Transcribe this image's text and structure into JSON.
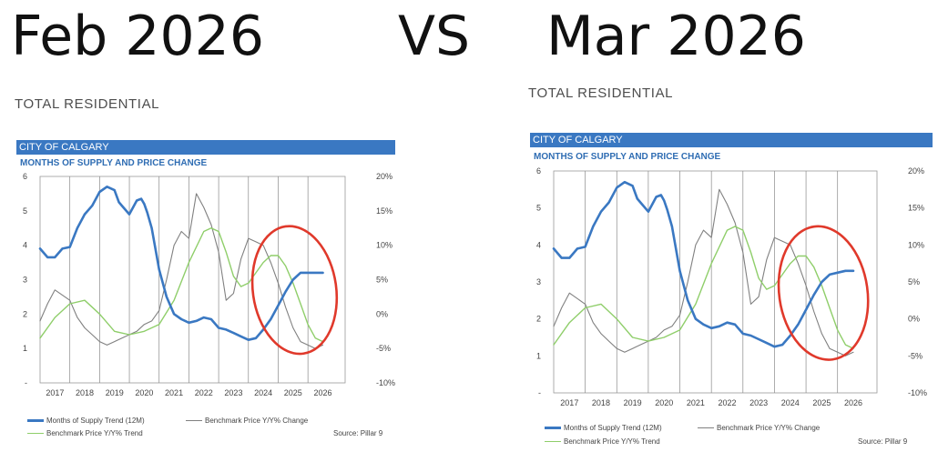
{
  "headline": {
    "left": "Feb 2026",
    "vs": "VS",
    "right": "Mar 2026"
  },
  "colors": {
    "months_of_supply": "#3a78c2",
    "benchmark_price_change": "#808080",
    "benchmark_price_trend": "#8fce6a",
    "annotation_circle": "#e0392b",
    "city_bar": "#3a78c2"
  },
  "panels": [
    {
      "section_title": "TOTAL RESIDENTIAL",
      "city_label": "CITY OF CALGARY",
      "chart_title": "MONTHS OF SUPPLY AND PRICE CHANGE",
      "legend": {
        "months_of_supply": "Months of Supply Trend (12M)",
        "benchmark_change": "Benchmark Price Y/Y% Change",
        "benchmark_trend": "Benchmark Price Y/Y% Trend"
      },
      "source": "Source: Pillar 9",
      "annotation": "red-circle-around-2024-2026"
    },
    {
      "section_title": "TOTAL RESIDENTIAL",
      "city_label": "CITY OF CALGARY",
      "chart_title": "MONTHS OF SUPPLY AND PRICE CHANGE",
      "legend": {
        "months_of_supply": "Months of Supply Trend (12M)",
        "benchmark_change": "Benchmark Price Y/Y% Change",
        "benchmark_trend": "Benchmark Price Y/Y% Trend"
      },
      "source": "Source: Pillar 9",
      "annotation": "red-circle-around-2024-2026"
    }
  ],
  "chart_data": [
    {
      "type": "line",
      "title": "MONTHS OF SUPPLY AND PRICE CHANGE",
      "x_categories": [
        "2017",
        "2018",
        "2019",
        "2020",
        "2021",
        "2022",
        "2023",
        "2024",
        "2025",
        "2026"
      ],
      "x_range": [
        2016.5,
        2026.75
      ],
      "y_left": {
        "ticks": [
          "-",
          "1",
          "2",
          "3",
          "4",
          "5",
          "6"
        ],
        "range": [
          0,
          6
        ]
      },
      "y_right": {
        "ticks": [
          "-10%",
          "-5%",
          "0%",
          "5%",
          "10%",
          "15%",
          "20%"
        ],
        "range": [
          -10,
          20
        ]
      },
      "grid": "vertical",
      "series": [
        {
          "name": "Months of Supply Trend (12M)",
          "axis": "left",
          "x": [
            2016.5,
            2016.75,
            2017.0,
            2017.25,
            2017.5,
            2017.75,
            2018.0,
            2018.25,
            2018.5,
            2018.75,
            2019.0,
            2019.15,
            2019.3,
            2019.5,
            2019.75,
            2019.9,
            2020.0,
            2020.1,
            2020.25,
            2020.5,
            2020.75,
            2021.0,
            2021.25,
            2021.5,
            2021.75,
            2022.0,
            2022.25,
            2022.5,
            2022.75,
            2023.0,
            2023.25,
            2023.5,
            2023.75,
            2024.0,
            2024.25,
            2024.5,
            2024.75,
            2025.0,
            2025.25,
            2025.5,
            2025.75,
            2026.0
          ],
          "y": [
            3.9,
            3.65,
            3.65,
            3.9,
            3.95,
            4.5,
            4.9,
            5.15,
            5.55,
            5.7,
            5.6,
            5.25,
            5.1,
            4.9,
            5.3,
            5.35,
            5.2,
            4.95,
            4.5,
            3.3,
            2.5,
            2.0,
            1.85,
            1.75,
            1.8,
            1.9,
            1.85,
            1.6,
            1.55,
            1.45,
            1.35,
            1.25,
            1.3,
            1.55,
            1.85,
            2.25,
            2.65,
            3.0,
            3.2,
            3.2,
            3.2,
            3.2
          ]
        },
        {
          "name": "Benchmark Price Y/Y% Change",
          "axis": "right",
          "x": [
            2016.5,
            2016.75,
            2017.0,
            2017.5,
            2017.75,
            2018.0,
            2018.25,
            2018.5,
            2018.75,
            2019.0,
            2019.25,
            2019.5,
            2019.75,
            2020.0,
            2020.25,
            2020.5,
            2020.75,
            2021.0,
            2021.25,
            2021.5,
            2021.75,
            2022.0,
            2022.25,
            2022.5,
            2022.75,
            2023.0,
            2023.25,
            2023.5,
            2023.75,
            2024.0,
            2024.25,
            2024.5,
            2024.75,
            2025.0,
            2025.25,
            2025.5,
            2025.75,
            2026.0
          ],
          "y": [
            -1.0,
            1.5,
            3.5,
            2.0,
            -0.5,
            -2.0,
            -3.0,
            -4.0,
            -4.5,
            -4.0,
            -3.5,
            -3.0,
            -2.5,
            -1.5,
            -1.0,
            0.5,
            5.0,
            10.0,
            12.0,
            11.0,
            17.5,
            15.5,
            13.0,
            9.0,
            2.0,
            3.0,
            8.0,
            11.0,
            10.5,
            10.0,
            7.5,
            4.5,
            1.0,
            -2.0,
            -4.0,
            -4.5,
            -5.0,
            -4.5
          ]
        },
        {
          "name": "Benchmark Price Y/Y% Trend",
          "axis": "right",
          "x": [
            2016.5,
            2017.0,
            2017.5,
            2018.0,
            2018.5,
            2019.0,
            2019.5,
            2020.0,
            2020.5,
            2021.0,
            2021.5,
            2022.0,
            2022.25,
            2022.5,
            2022.75,
            2023.0,
            2023.25,
            2023.5,
            2023.75,
            2024.0,
            2024.25,
            2024.5,
            2024.75,
            2025.0,
            2025.25,
            2025.5,
            2025.75,
            2026.0
          ],
          "y": [
            -3.5,
            -0.5,
            1.5,
            2.0,
            0.0,
            -2.5,
            -3.0,
            -2.5,
            -1.5,
            2.0,
            7.5,
            12.0,
            12.5,
            12.0,
            9.0,
            5.5,
            4.0,
            4.5,
            6.0,
            7.5,
            8.5,
            8.5,
            7.0,
            4.5,
            1.5,
            -1.5,
            -3.5,
            -4.0
          ]
        }
      ],
      "source": "Source: Pillar 9"
    },
    {
      "type": "line",
      "title": "MONTHS OF SUPPLY AND PRICE CHANGE",
      "x_categories": [
        "2017",
        "2018",
        "2019",
        "2020",
        "2021",
        "2022",
        "2023",
        "2024",
        "2025",
        "2026"
      ],
      "x_range": [
        2016.5,
        2026.75
      ],
      "y_left": {
        "ticks": [
          "-",
          "1",
          "2",
          "3",
          "4",
          "5",
          "6"
        ],
        "range": [
          0,
          6
        ]
      },
      "y_right": {
        "ticks": [
          "-10%",
          "-5%",
          "0%",
          "5%",
          "10%",
          "15%",
          "20%"
        ],
        "range": [
          -10,
          20
        ]
      },
      "grid": "vertical",
      "series": [
        {
          "name": "Months of Supply Trend (12M)",
          "axis": "left",
          "x": [
            2016.5,
            2016.75,
            2017.0,
            2017.25,
            2017.5,
            2017.75,
            2018.0,
            2018.25,
            2018.5,
            2018.75,
            2019.0,
            2019.15,
            2019.3,
            2019.5,
            2019.75,
            2019.9,
            2020.0,
            2020.1,
            2020.25,
            2020.5,
            2020.75,
            2021.0,
            2021.25,
            2021.5,
            2021.75,
            2022.0,
            2022.25,
            2022.5,
            2022.75,
            2023.0,
            2023.25,
            2023.5,
            2023.75,
            2024.0,
            2024.25,
            2024.5,
            2024.75,
            2025.0,
            2025.25,
            2025.5,
            2025.75,
            2026.0
          ],
          "y": [
            3.9,
            3.65,
            3.65,
            3.9,
            3.95,
            4.5,
            4.9,
            5.15,
            5.55,
            5.7,
            5.6,
            5.25,
            5.1,
            4.9,
            5.3,
            5.35,
            5.2,
            4.95,
            4.5,
            3.3,
            2.5,
            2.0,
            1.85,
            1.75,
            1.8,
            1.9,
            1.85,
            1.6,
            1.55,
            1.45,
            1.35,
            1.25,
            1.3,
            1.55,
            1.85,
            2.25,
            2.65,
            3.0,
            3.2,
            3.25,
            3.3,
            3.3
          ]
        },
        {
          "name": "Benchmark Price Y/Y% Change",
          "axis": "right",
          "x": [
            2016.5,
            2016.75,
            2017.0,
            2017.5,
            2017.75,
            2018.0,
            2018.25,
            2018.5,
            2018.75,
            2019.0,
            2019.25,
            2019.5,
            2019.75,
            2020.0,
            2020.25,
            2020.5,
            2020.75,
            2021.0,
            2021.25,
            2021.5,
            2021.75,
            2022.0,
            2022.25,
            2022.5,
            2022.75,
            2023.0,
            2023.25,
            2023.5,
            2023.75,
            2024.0,
            2024.25,
            2024.5,
            2024.75,
            2025.0,
            2025.25,
            2025.5,
            2025.75,
            2026.0
          ],
          "y": [
            -1.0,
            1.5,
            3.5,
            2.0,
            -0.5,
            -2.0,
            -3.0,
            -4.0,
            -4.5,
            -4.0,
            -3.5,
            -3.0,
            -2.5,
            -1.5,
            -1.0,
            0.5,
            5.0,
            10.0,
            12.0,
            11.0,
            17.5,
            15.5,
            13.0,
            9.0,
            2.0,
            3.0,
            8.0,
            11.0,
            10.5,
            10.0,
            7.5,
            4.5,
            1.0,
            -2.0,
            -4.0,
            -4.5,
            -5.0,
            -4.5
          ]
        },
        {
          "name": "Benchmark Price Y/Y% Trend",
          "axis": "right",
          "x": [
            2016.5,
            2017.0,
            2017.5,
            2018.0,
            2018.5,
            2019.0,
            2019.5,
            2020.0,
            2020.5,
            2021.0,
            2021.5,
            2022.0,
            2022.25,
            2022.5,
            2022.75,
            2023.0,
            2023.25,
            2023.5,
            2023.75,
            2024.0,
            2024.25,
            2024.5,
            2024.75,
            2025.0,
            2025.25,
            2025.5,
            2025.75,
            2026.0
          ],
          "y": [
            -3.5,
            -0.5,
            1.5,
            2.0,
            0.0,
            -2.5,
            -3.0,
            -2.5,
            -1.5,
            2.0,
            7.5,
            12.0,
            12.5,
            12.0,
            9.0,
            5.5,
            4.0,
            4.5,
            6.0,
            7.5,
            8.5,
            8.5,
            7.0,
            4.5,
            1.5,
            -1.5,
            -3.5,
            -4.0
          ]
        }
      ],
      "source": "Source: Pillar 9"
    }
  ]
}
